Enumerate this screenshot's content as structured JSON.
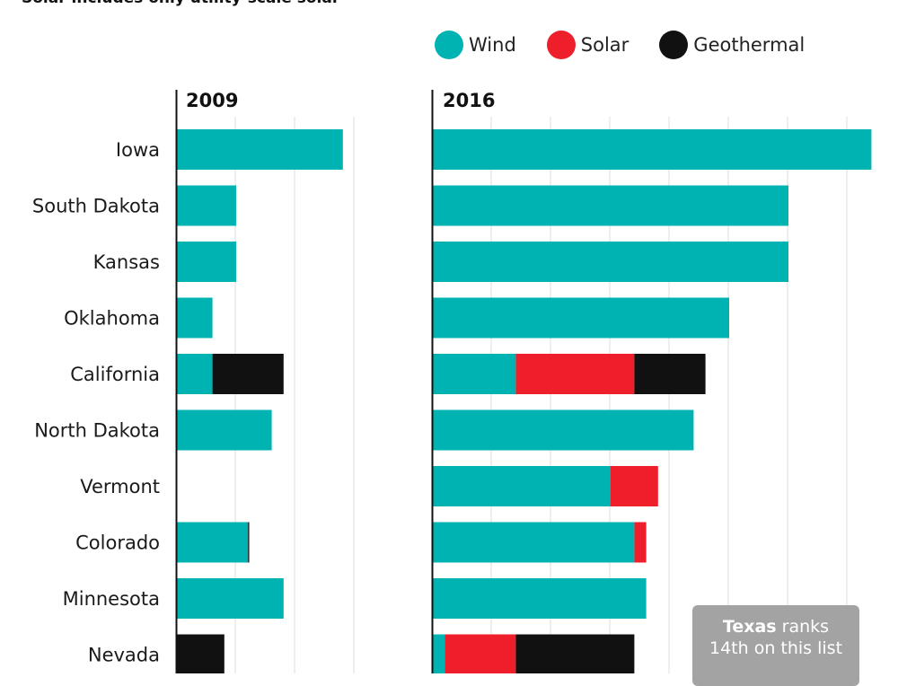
{
  "subtitle": "Solar includes only utility-scale solar",
  "legend": [
    {
      "label": "Wind",
      "color": "#00b3b3"
    },
    {
      "label": "Solar",
      "color": "#ee1f2a"
    },
    {
      "label": "Geothermal",
      "color": "#111111"
    }
  ],
  "note": {
    "state": "Texas",
    "text_1": "ranks",
    "text_2": "14th on this list"
  },
  "chart_data": [
    {
      "type": "bar",
      "stacked": true,
      "orientation": "horizontal",
      "title": "2009",
      "categories": [
        "Iowa",
        "South Dakota",
        "Kansas",
        "Oklahoma",
        "California",
        "North Dakota",
        "Vermont",
        "Colorado",
        "Minnesota",
        "Nevada"
      ],
      "series": [
        {
          "name": "Wind",
          "values": [
            14,
            5,
            5,
            3,
            3,
            8,
            0,
            6,
            9,
            0
          ]
        },
        {
          "name": "Solar",
          "values": [
            0,
            0,
            0,
            0,
            0,
            0,
            0,
            0,
            0,
            0
          ]
        },
        {
          "name": "Geothermal",
          "values": [
            0,
            0,
            0,
            0,
            6,
            0,
            0,
            0.1,
            0,
            4
          ]
        }
      ],
      "xlim": [
        0,
        15
      ],
      "grid": true
    },
    {
      "type": "bar",
      "stacked": true,
      "orientation": "horizontal",
      "title": "2016",
      "categories": [
        "Iowa",
        "South Dakota",
        "Kansas",
        "Oklahoma",
        "California",
        "North Dakota",
        "Vermont",
        "Colorado",
        "Minnesota",
        "Nevada"
      ],
      "series": [
        {
          "name": "Wind",
          "values": [
            37,
            30,
            30,
            25,
            7,
            22,
            15,
            17,
            18,
            1
          ]
        },
        {
          "name": "Solar",
          "values": [
            0,
            0,
            0,
            0,
            10,
            0,
            4,
            1,
            0,
            6
          ]
        },
        {
          "name": "Geothermal",
          "values": [
            0,
            0,
            0,
            0,
            6,
            0,
            0,
            0,
            0,
            10
          ]
        }
      ],
      "xlim": [
        0,
        37
      ],
      "grid": true
    }
  ]
}
